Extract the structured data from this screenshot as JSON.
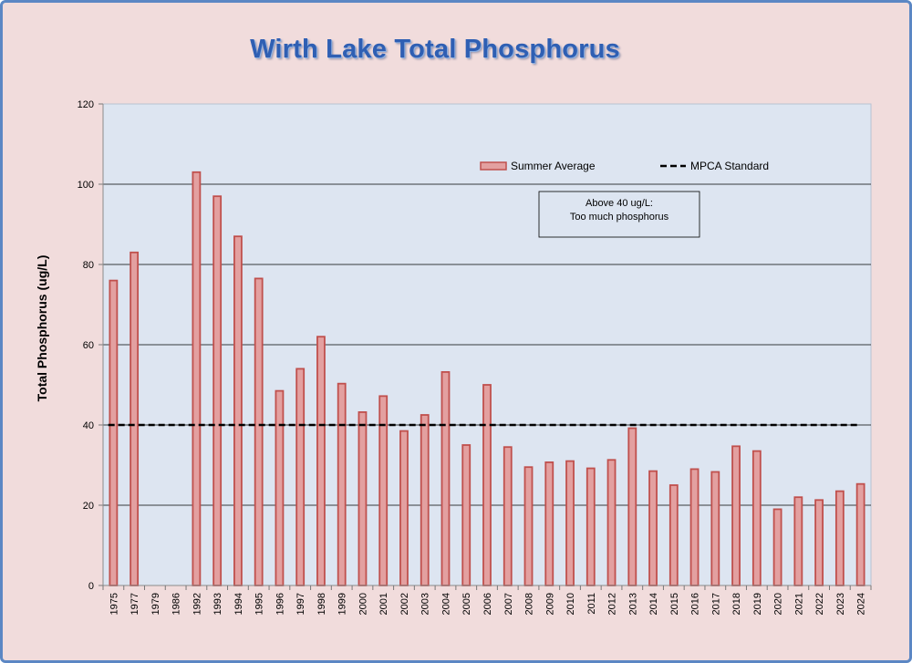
{
  "chart_data": {
    "type": "bar",
    "title": "Wirth Lake Total Phosphorus",
    "ylabel": "Total Phosphorus (ug/L)",
    "xlabel": "",
    "ylim": [
      0,
      120
    ],
    "yticks": [
      0,
      20,
      40,
      60,
      80,
      100,
      120
    ],
    "grid": true,
    "legend_position": "top-right",
    "categories": [
      "1975",
      "1977",
      "1979",
      "1986",
      "1992",
      "1993",
      "1994",
      "1995",
      "1996",
      "1997",
      "1998",
      "1999",
      "2000",
      "2001",
      "2002",
      "2003",
      "2004",
      "2005",
      "2006",
      "2007",
      "2008",
      "2009",
      "2010",
      "2011",
      "2012",
      "2013",
      "2014",
      "2015",
      "2016",
      "2017",
      "2018",
      "2019",
      "2020",
      "2021",
      "2022",
      "2023",
      "2024"
    ],
    "series": [
      {
        "name": "Summer Average",
        "color": "#e3a0a0",
        "edge_color": "#c0504d",
        "values": [
          76,
          83,
          null,
          null,
          103,
          97,
          87,
          76.5,
          48.5,
          54,
          62,
          50.3,
          43.2,
          47.2,
          38.5,
          42.5,
          53.2,
          35,
          50,
          34.5,
          29.5,
          30.7,
          31,
          29.2,
          31.3,
          39.2,
          28.5,
          25,
          29,
          28.3,
          34.7,
          33.5,
          19,
          22,
          21.3,
          23.5,
          25.3
        ]
      },
      {
        "name": "MPCA Standard",
        "type": "line",
        "style": "dashed",
        "color": "#000000",
        "value": 40
      }
    ],
    "annotation": {
      "lines": [
        "Above 40 ug/L:",
        "Too much phosphorus"
      ]
    },
    "colors": {
      "plot_background": "#dde5f1",
      "page_background": "#f1dcdc",
      "title": "#2f5fb3",
      "frame": "#5b87c4"
    }
  }
}
